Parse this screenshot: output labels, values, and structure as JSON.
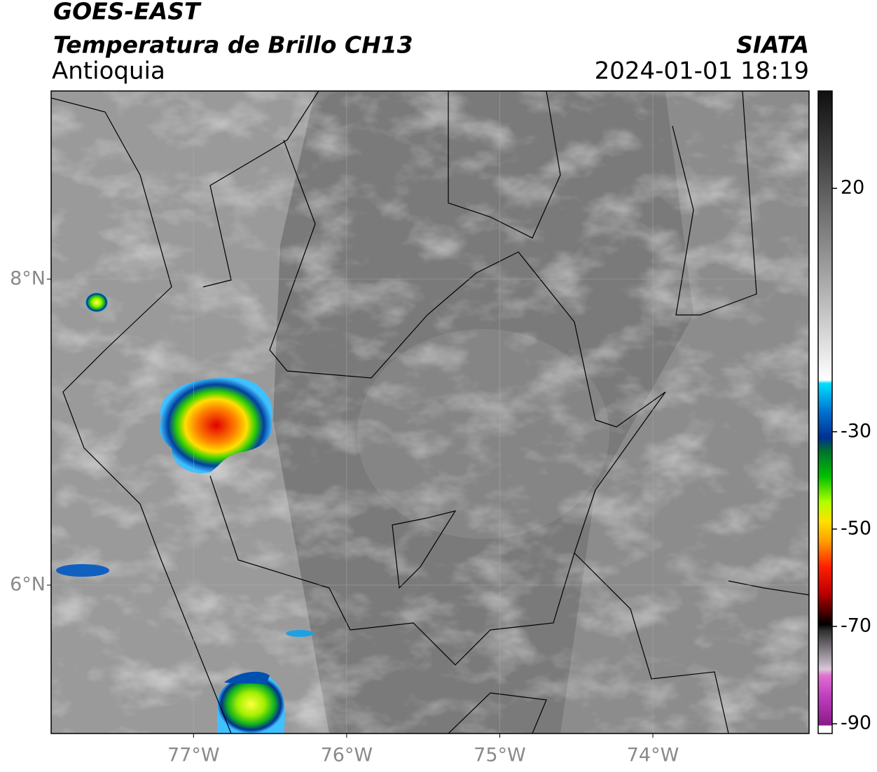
{
  "header": {
    "title": "GOES-EAST",
    "subtitle": "Temperatura de Brillo CH13",
    "region": "Antioquia",
    "source": "SIATA",
    "datetime": "2024-01-01 18:19"
  },
  "map": {
    "xlim": [
      -77.93,
      -72.98
    ],
    "ylim": [
      5.03,
      9.23
    ],
    "xticks": [
      {
        "value": -77,
        "label": "77°W"
      },
      {
        "value": -76,
        "label": "76°W"
      },
      {
        "value": -75,
        "label": "75°W"
      },
      {
        "value": -74,
        "label": "74°W"
      }
    ],
    "yticks": [
      {
        "value": 8,
        "label": "8°N"
      },
      {
        "value": 6,
        "label": "6°N"
      }
    ],
    "grid": true
  },
  "colorbar": {
    "lim": [
      -92,
      40
    ],
    "ticks": [
      20,
      -30,
      -50,
      -70,
      -90
    ]
  }
}
